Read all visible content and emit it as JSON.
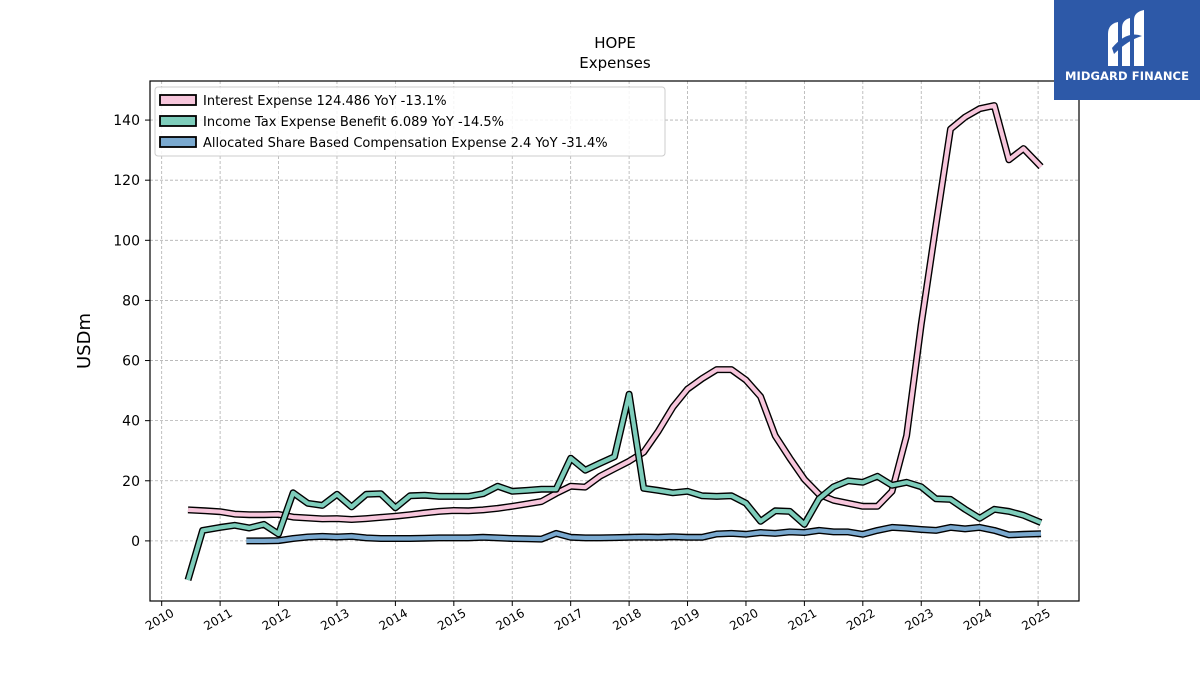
{
  "chart_data": {
    "type": "line",
    "title": "HOPE",
    "subtitle": "Expenses",
    "xlabel": "",
    "ylabel": "USDm",
    "xlim": [
      2009.8,
      2025.7
    ],
    "ylim": [
      -20,
      153
    ],
    "grid": true,
    "legend_position": "top-left",
    "x_ticks": [
      "2010",
      "2011",
      "2012",
      "2013",
      "2014",
      "2015",
      "2016",
      "2017",
      "2018",
      "2019",
      "2020",
      "2021",
      "2022",
      "2023",
      "2024",
      "2025"
    ],
    "y_ticks": [
      "0",
      "20",
      "40",
      "60",
      "80",
      "100",
      "120",
      "140"
    ],
    "series": [
      {
        "name": "Interest Expense  124.486 YoY -13.1%",
        "color": "#f7c6dc",
        "points": [
          [
            2010.45,
            10.3
          ],
          [
            2010.75,
            10.0
          ],
          [
            2011.0,
            9.7
          ],
          [
            2011.25,
            8.9
          ],
          [
            2011.5,
            8.7
          ],
          [
            2011.75,
            8.7
          ],
          [
            2012.0,
            8.8
          ],
          [
            2012.25,
            7.9
          ],
          [
            2012.5,
            7.6
          ],
          [
            2012.75,
            7.3
          ],
          [
            2013.0,
            7.4
          ],
          [
            2013.25,
            7.1
          ],
          [
            2013.5,
            7.4
          ],
          [
            2013.75,
            7.8
          ],
          [
            2014.0,
            8.2
          ],
          [
            2014.25,
            8.7
          ],
          [
            2014.5,
            9.3
          ],
          [
            2014.75,
            9.8
          ],
          [
            2015.0,
            10.1
          ],
          [
            2015.25,
            10.0
          ],
          [
            2015.5,
            10.3
          ],
          [
            2015.75,
            10.8
          ],
          [
            2016.0,
            11.5
          ],
          [
            2016.25,
            12.3
          ],
          [
            2016.5,
            13.1
          ],
          [
            2016.75,
            15.8
          ],
          [
            2017.0,
            18.2
          ],
          [
            2017.25,
            17.9
          ],
          [
            2017.5,
            21.5
          ],
          [
            2017.75,
            24.0
          ],
          [
            2018.0,
            26.5
          ],
          [
            2018.25,
            29.5
          ],
          [
            2018.5,
            36.5
          ],
          [
            2018.75,
            44.5
          ],
          [
            2019.0,
            50.5
          ],
          [
            2019.25,
            54.0
          ],
          [
            2019.5,
            57.0
          ],
          [
            2019.75,
            57.0
          ],
          [
            2020.0,
            53.5
          ],
          [
            2020.25,
            48.0
          ],
          [
            2020.5,
            35.0
          ],
          [
            2020.75,
            27.5
          ],
          [
            2021.0,
            20.5
          ],
          [
            2021.25,
            15.5
          ],
          [
            2021.5,
            13.5
          ],
          [
            2021.75,
            12.5
          ],
          [
            2022.0,
            11.5
          ],
          [
            2022.25,
            11.5
          ],
          [
            2022.5,
            16.5
          ],
          [
            2022.75,
            35.0
          ],
          [
            2023.0,
            72.0
          ],
          [
            2023.25,
            105.0
          ],
          [
            2023.5,
            137.0
          ],
          [
            2023.75,
            141.0
          ],
          [
            2024.0,
            143.8
          ],
          [
            2024.25,
            144.8
          ],
          [
            2024.5,
            126.8
          ],
          [
            2024.75,
            130.5
          ],
          [
            2025.05,
            124.486
          ]
        ]
      },
      {
        "name": "Income Tax Expense Benefit  6.089 YoY -14.5%",
        "color": "#7ecdbb",
        "points": [
          [
            2010.45,
            -13.0
          ],
          [
            2010.7,
            3.5
          ],
          [
            2011.0,
            4.5
          ],
          [
            2011.25,
            5.2
          ],
          [
            2011.5,
            4.3
          ],
          [
            2011.75,
            5.5
          ],
          [
            2012.0,
            2.3
          ],
          [
            2012.25,
            16.0
          ],
          [
            2012.5,
            12.5
          ],
          [
            2012.75,
            11.8
          ],
          [
            2013.0,
            15.5
          ],
          [
            2013.25,
            11.3
          ],
          [
            2013.5,
            15.5
          ],
          [
            2013.75,
            15.7
          ],
          [
            2014.0,
            11.0
          ],
          [
            2014.25,
            15.0
          ],
          [
            2014.5,
            15.2
          ],
          [
            2014.75,
            14.8
          ],
          [
            2015.0,
            14.8
          ],
          [
            2015.25,
            14.8
          ],
          [
            2015.5,
            15.7
          ],
          [
            2015.75,
            18.2
          ],
          [
            2016.0,
            16.5
          ],
          [
            2016.25,
            16.8
          ],
          [
            2016.5,
            17.2
          ],
          [
            2016.75,
            17.2
          ],
          [
            2017.0,
            27.5
          ],
          [
            2017.25,
            23.5
          ],
          [
            2017.5,
            25.8
          ],
          [
            2017.75,
            28.0
          ],
          [
            2018.0,
            48.8
          ],
          [
            2018.25,
            17.5
          ],
          [
            2018.5,
            16.8
          ],
          [
            2018.75,
            16.0
          ],
          [
            2019.0,
            16.5
          ],
          [
            2019.25,
            15.0
          ],
          [
            2019.5,
            14.8
          ],
          [
            2019.75,
            15.0
          ],
          [
            2020.0,
            12.5
          ],
          [
            2020.25,
            6.5
          ],
          [
            2020.5,
            10.0
          ],
          [
            2020.75,
            9.8
          ],
          [
            2021.0,
            5.5
          ],
          [
            2021.25,
            14.0
          ],
          [
            2021.5,
            18.0
          ],
          [
            2021.75,
            20.0
          ],
          [
            2022.0,
            19.5
          ],
          [
            2022.25,
            21.5
          ],
          [
            2022.5,
            18.5
          ],
          [
            2022.75,
            19.5
          ],
          [
            2023.0,
            18.0
          ],
          [
            2023.25,
            14.0
          ],
          [
            2023.5,
            13.8
          ],
          [
            2023.75,
            10.5
          ],
          [
            2024.0,
            7.5
          ],
          [
            2024.25,
            10.5
          ],
          [
            2024.5,
            9.8
          ],
          [
            2024.75,
            8.5
          ],
          [
            2025.05,
            6.089
          ]
        ]
      },
      {
        "name": "Allocated Share Based Compensation Expense  2.4 YoY -31.4%",
        "color": "#7aa9cf",
        "points": [
          [
            2011.45,
            0.0
          ],
          [
            2011.75,
            0.0
          ],
          [
            2012.0,
            0.1
          ],
          [
            2012.25,
            0.8
          ],
          [
            2012.5,
            1.3
          ],
          [
            2012.75,
            1.5
          ],
          [
            2013.0,
            1.3
          ],
          [
            2013.25,
            1.5
          ],
          [
            2013.5,
            1.0
          ],
          [
            2013.75,
            0.8
          ],
          [
            2014.0,
            0.8
          ],
          [
            2014.25,
            0.8
          ],
          [
            2014.5,
            0.9
          ],
          [
            2014.75,
            1.0
          ],
          [
            2015.0,
            1.0
          ],
          [
            2015.25,
            1.0
          ],
          [
            2015.5,
            1.2
          ],
          [
            2015.75,
            1.0
          ],
          [
            2016.0,
            0.8
          ],
          [
            2016.25,
            0.7
          ],
          [
            2016.5,
            0.6
          ],
          [
            2016.75,
            2.5
          ],
          [
            2017.0,
            1.2
          ],
          [
            2017.25,
            1.0
          ],
          [
            2017.5,
            1.0
          ],
          [
            2017.75,
            1.1
          ],
          [
            2018.0,
            1.2
          ],
          [
            2018.25,
            1.3
          ],
          [
            2018.5,
            1.2
          ],
          [
            2018.75,
            1.4
          ],
          [
            2019.0,
            1.2
          ],
          [
            2019.25,
            1.2
          ],
          [
            2019.5,
            2.3
          ],
          [
            2019.75,
            2.5
          ],
          [
            2020.0,
            2.2
          ],
          [
            2020.25,
            2.8
          ],
          [
            2020.5,
            2.5
          ],
          [
            2020.75,
            3.0
          ],
          [
            2021.0,
            2.8
          ],
          [
            2021.25,
            3.5
          ],
          [
            2021.5,
            3.0
          ],
          [
            2021.75,
            3.0
          ],
          [
            2022.0,
            2.2
          ],
          [
            2022.25,
            3.5
          ],
          [
            2022.5,
            4.5
          ],
          [
            2022.75,
            4.2
          ],
          [
            2023.0,
            3.8
          ],
          [
            2023.25,
            3.5
          ],
          [
            2023.5,
            4.5
          ],
          [
            2023.75,
            4.0
          ],
          [
            2024.0,
            4.5
          ],
          [
            2024.25,
            3.5
          ],
          [
            2024.5,
            2.0
          ],
          [
            2024.75,
            2.2
          ],
          [
            2025.05,
            2.4
          ]
        ]
      }
    ]
  },
  "logo": {
    "text": "MIDGARD FINANCE",
    "background": "#2d59a8"
  }
}
